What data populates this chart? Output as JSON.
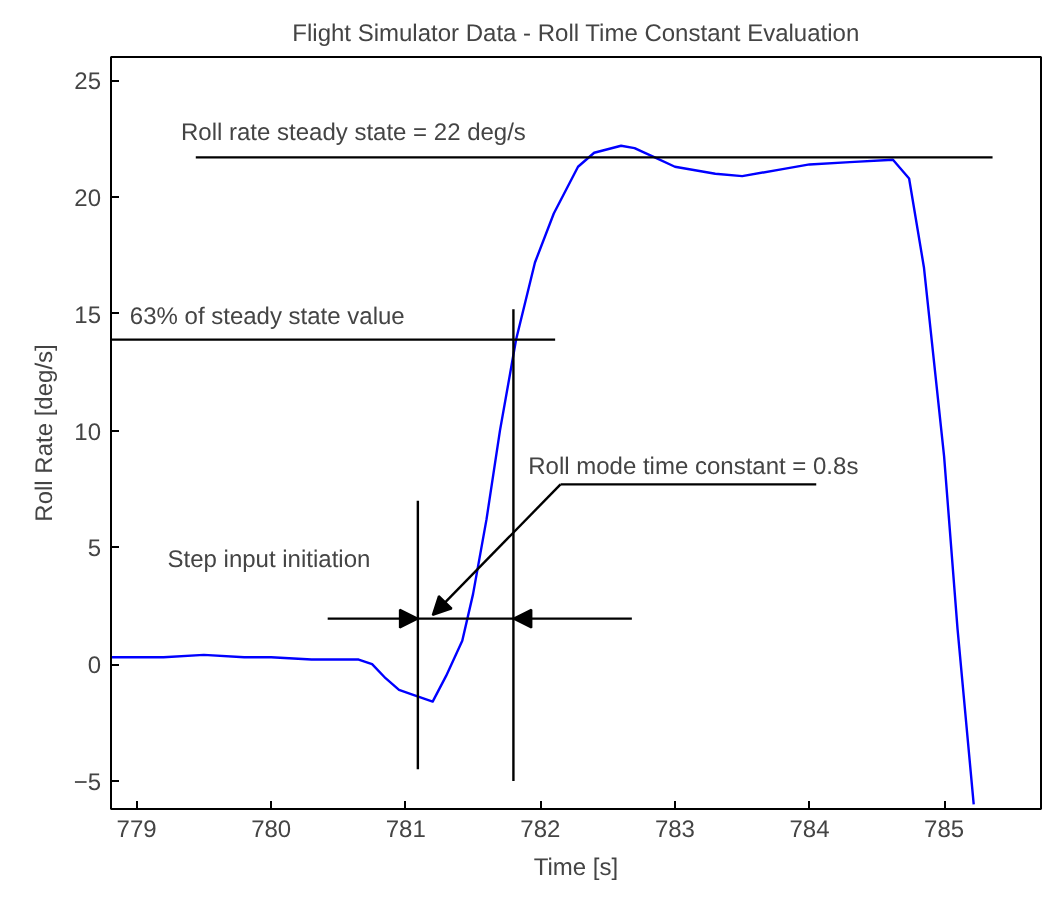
{
  "chart_data": {
    "type": "line",
    "title": "Flight Simulator Data - Roll Time Constant Evaluation",
    "xlabel": "Time [s]",
    "ylabel": "Roll Rate [deg/s]",
    "xlim": [
      778.81,
      785.72
    ],
    "ylim": [
      -6.2,
      26
    ],
    "xticks": [
      779,
      780,
      781,
      782,
      783,
      784,
      785
    ],
    "yticks": [
      -5,
      0,
      5,
      10,
      15,
      20,
      25
    ],
    "grid": false,
    "series": [
      {
        "color": "#0000ff",
        "x": [
          778.81,
          779.2,
          779.5,
          779.8,
          780.0,
          780.3,
          780.65,
          780.75,
          780.85,
          780.95,
          781.05,
          781.2,
          781.3,
          781.42,
          781.5,
          781.6,
          781.7,
          781.82,
          781.96,
          782.1,
          782.28,
          782.4,
          782.6,
          782.7,
          782.85,
          783.0,
          783.3,
          783.5,
          783.8,
          784.0,
          784.3,
          784.62,
          784.74,
          784.85,
          785.0,
          785.1,
          785.22
        ],
        "values": [
          0.3,
          0.3,
          0.4,
          0.3,
          0.3,
          0.2,
          0.2,
          0.0,
          -0.6,
          -1.1,
          -1.3,
          -1.6,
          -0.5,
          1.0,
          3.0,
          6.2,
          10.0,
          13.9,
          17.2,
          19.3,
          21.3,
          21.9,
          22.2,
          22.1,
          21.7,
          21.3,
          21.0,
          20.9,
          21.2,
          21.4,
          21.5,
          21.6,
          20.8,
          17.0,
          8.9,
          1.5,
          -6.0
        ]
      },
      {
        "color": "#000000",
        "x": [
          779.44,
          785.36
        ],
        "values": [
          21.7,
          21.7
        ]
      },
      {
        "color": "#000000",
        "x": [
          778.81,
          782.11
        ],
        "values": [
          13.9,
          13.9
        ]
      },
      {
        "color": "#000000",
        "x": [
          781.09,
          781.09
        ],
        "values": [
          7.0,
          -4.5
        ]
      },
      {
        "color": "#000000",
        "x": [
          781.8,
          781.8
        ],
        "values": [
          15.2,
          -5.0
        ]
      }
    ],
    "annotations": [
      "Roll rate steady state = 22 deg/s",
      "63% of steady state value",
      "Roll mode time constant = 0.8s",
      "Step input initiation"
    ]
  }
}
